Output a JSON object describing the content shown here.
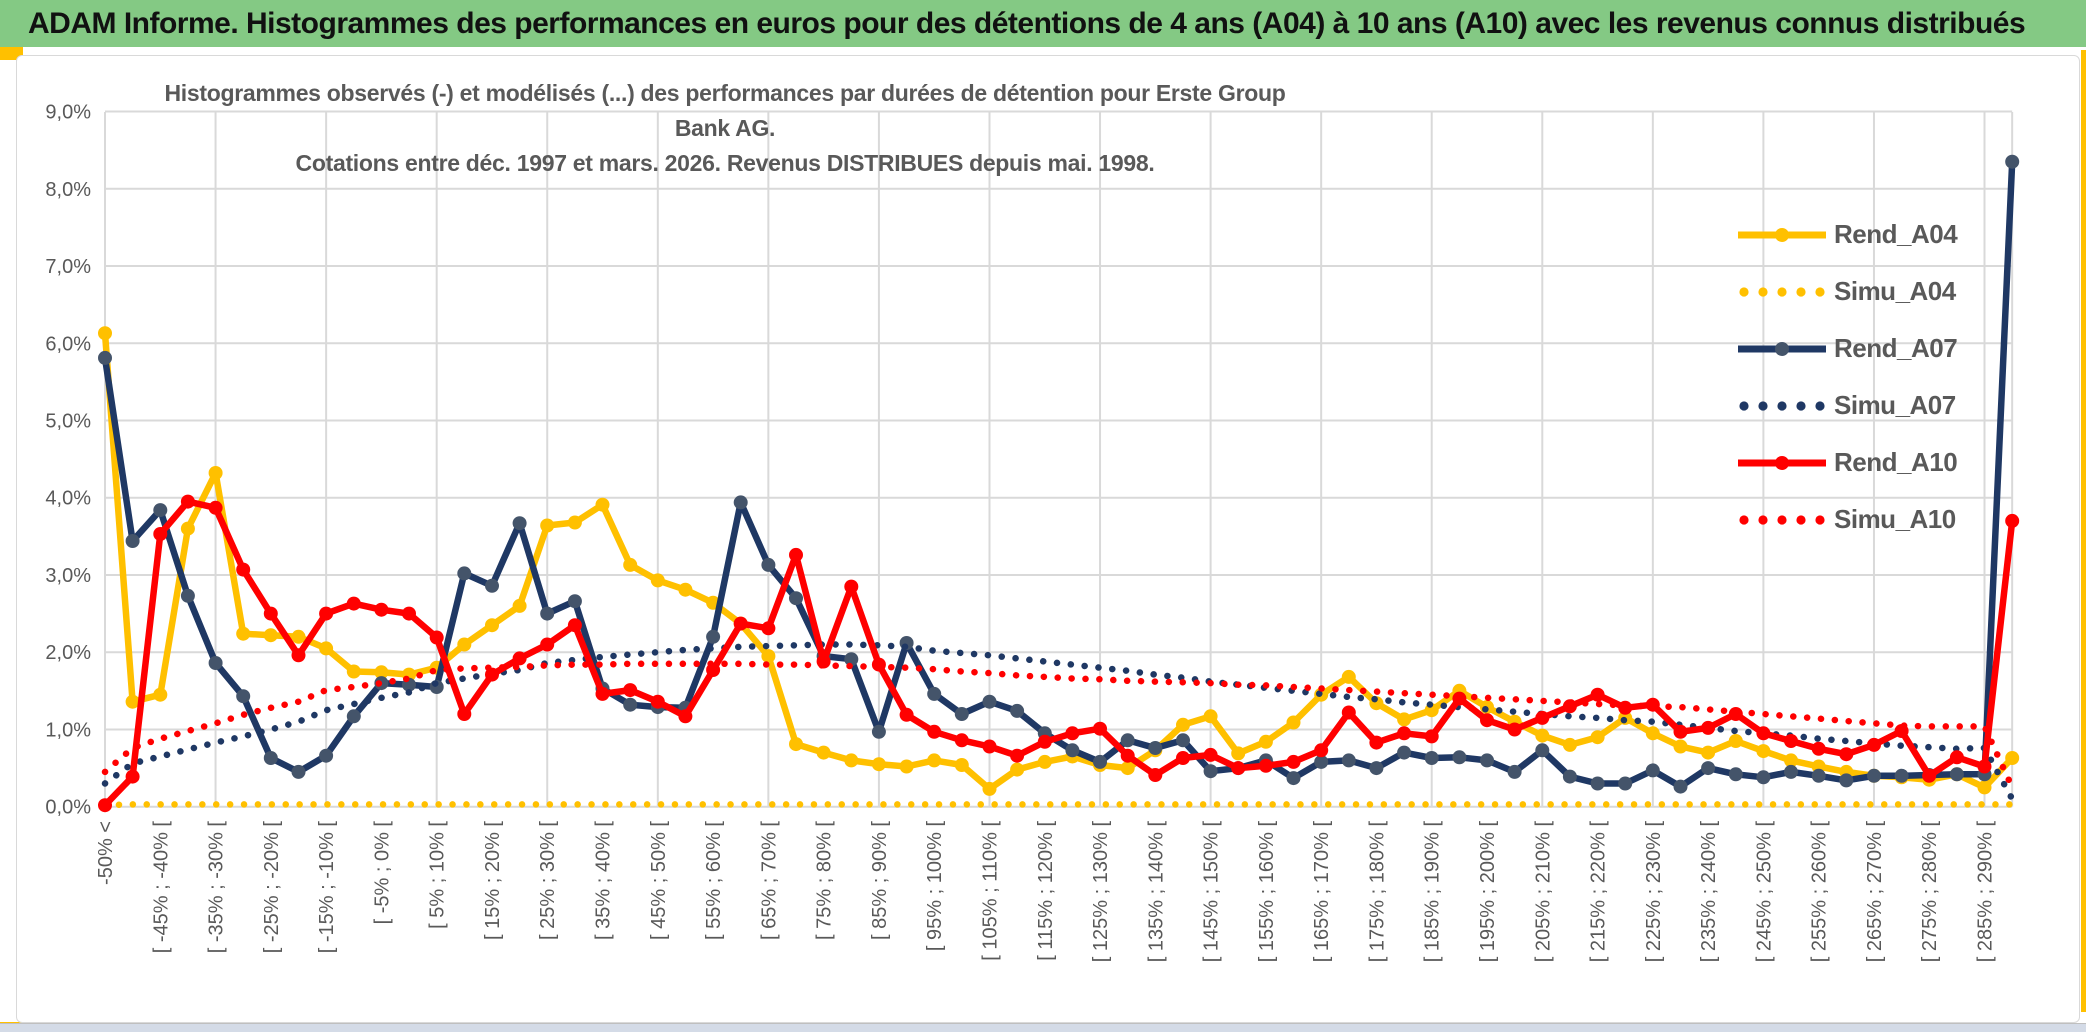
{
  "header": {
    "title": "ADAM Informe. Histogrammes des performances en euros pour des détentions de 4 ans (A04) à 10 ans (A10) avec les revenus connus distribués"
  },
  "chart": {
    "title_line1": "Histogrammes observés (-) et modélisés (...) des performances par durées de détention pour Erste Group Bank AG.",
    "title_line2": "Cotations entre déc. 1997 et mars. 2026. Revenus DISTRIBUES depuis mai. 1998."
  },
  "chart_data": {
    "type": "line",
    "title": "Histogrammes observés (-) et modélisés (...) des performances par durées de détention pour Erste Group Bank AG. Cotations entre déc. 1997 et mars. 2026. Revenus DISTRIBUES depuis mai. 1998.",
    "xlabel": "",
    "ylabel": "",
    "ylim": [
      0,
      9
    ],
    "y_unit": "%",
    "y_ticks": [
      "0,0%",
      "1,0%",
      "2,0%",
      "3,0%",
      "4,0%",
      "5,0%",
      "6,0%",
      "7,0%",
      "8,0%",
      "9,0%"
    ],
    "grid": true,
    "legend_position": "upper-right",
    "points_per_series": 70,
    "label_note": "5%-wide performance bins; 70 bins total, axis label on every other bin, vertical gridline every fourth bin",
    "categories": [
      "-50% <",
      "[ -45% ; -40% [",
      "[ -35% ; -30% [",
      "[ -25% ; -20% [",
      "[ -15% ; -10% [",
      "[ -5% ; 0% [",
      "[ 5% ; 10% [",
      "[ 15% ; 20% [",
      "[ 25% ; 30% [",
      "[ 35% ; 40% [",
      "[ 45% ; 50% [",
      "[ 55% ; 60% [",
      "[ 65% ; 70% [",
      "[ 75% ; 80% [",
      "[ 85% ; 90% [",
      "[ 95% ; 100% [",
      "[ 105% ; 110% [",
      "[ 115% ; 120% [",
      "[ 125% ; 130% [",
      "[ 135% ; 140% [",
      "[ 145% ; 150% [",
      "[ 155% ; 160% [",
      "[ 165% ; 170% [",
      "[ 175% ; 180% [",
      "[ 185% ; 190% [",
      "[ 195% ; 200% [",
      "[ 205% ; 210% [",
      "[ 215% ; 220% [",
      "[ 225% ; 230% [",
      "[ 235% ; 240% [",
      "[ 245% ; 250% [",
      "[ 255% ; 260% [",
      "[ 265% ; 270% [",
      "[ 275% ; 280% [",
      "[ 285% ; 290% ["
    ],
    "series": [
      {
        "name": "Rend_A04",
        "style": "solid",
        "color": "#FFC000",
        "marker_color": "#FFC000",
        "values": [
          6.13,
          1.36,
          1.45,
          3.6,
          4.32,
          2.24,
          2.22,
          2.2,
          2.05,
          1.75,
          1.74,
          1.71,
          1.8,
          2.1,
          2.35,
          2.6,
          3.64,
          3.68,
          3.91,
          3.13,
          2.93,
          2.81,
          2.64,
          2.37,
          1.95,
          0.81,
          0.7,
          0.6,
          0.55,
          0.52,
          0.6,
          0.54,
          0.23,
          0.48,
          0.58,
          0.65,
          0.54,
          0.5,
          0.73,
          1.06,
          1.17,
          0.69,
          0.84,
          1.09,
          1.45,
          1.68,
          1.34,
          1.13,
          1.25,
          1.5,
          1.29,
          1.1,
          0.92,
          0.8,
          0.9,
          1.15,
          0.95,
          0.78,
          0.7,
          0.85,
          0.72,
          0.6,
          0.52,
          0.45,
          0.4,
          0.38,
          0.35,
          0.42,
          0.25,
          0.63
        ]
      },
      {
        "name": "Simu_A04",
        "style": "dotted",
        "color": "#FFC000",
        "values": [
          0.02,
          0.03,
          0.03,
          0.03,
          0.03,
          0.03,
          0.03,
          0.03,
          0.03,
          0.03,
          0.03,
          0.03,
          0.03,
          0.03,
          0.03,
          0.03,
          0.03,
          0.03,
          0.03,
          0.03,
          0.03,
          0.03,
          0.03,
          0.03,
          0.03,
          0.03,
          0.03,
          0.03,
          0.03,
          0.03,
          0.03,
          0.03,
          0.03,
          0.03,
          0.03,
          0.03,
          0.03,
          0.03,
          0.03,
          0.03,
          0.03,
          0.03,
          0.03,
          0.03,
          0.03,
          0.03,
          0.03,
          0.03,
          0.03,
          0.03,
          0.03,
          0.03,
          0.03,
          0.03,
          0.03,
          0.03,
          0.03,
          0.03,
          0.03,
          0.03,
          0.03,
          0.03,
          0.03,
          0.03,
          0.03,
          0.03,
          0.03,
          0.03,
          0.03,
          0.03
        ]
      },
      {
        "name": "Rend_A07",
        "style": "solid",
        "color": "#1F3864",
        "marker_color": "#44546A",
        "values": [
          5.81,
          3.44,
          3.84,
          2.73,
          1.86,
          1.43,
          0.63,
          0.45,
          0.66,
          1.17,
          1.6,
          1.58,
          1.55,
          3.02,
          2.86,
          3.67,
          2.5,
          2.66,
          1.53,
          1.32,
          1.29,
          1.28,
          2.2,
          3.94,
          3.13,
          2.7,
          1.95,
          1.91,
          0.97,
          2.12,
          1.46,
          1.2,
          1.36,
          1.24,
          0.95,
          0.73,
          0.58,
          0.86,
          0.76,
          0.86,
          0.46,
          0.5,
          0.6,
          0.37,
          0.58,
          0.6,
          0.5,
          0.7,
          0.63,
          0.64,
          0.6,
          0.45,
          0.73,
          0.39,
          0.3,
          0.3,
          0.47,
          0.26,
          0.5,
          0.42,
          0.38,
          0.45,
          0.4,
          0.34,
          0.4,
          0.4,
          0.41,
          0.42,
          0.42,
          8.35
        ]
      },
      {
        "name": "Simu_A07",
        "style": "dotted",
        "color": "#1F3864",
        "values": [
          0.3,
          0.56,
          0.65,
          0.74,
          0.83,
          0.91,
          1.0,
          1.1,
          1.25,
          1.33,
          1.41,
          1.48,
          1.6,
          1.66,
          1.72,
          1.77,
          1.86,
          1.9,
          1.94,
          1.97,
          2.0,
          2.03,
          2.05,
          2.07,
          2.08,
          2.09,
          2.1,
          2.1,
          2.09,
          2.07,
          2.02,
          1.99,
          1.96,
          1.92,
          1.88,
          1.84,
          1.8,
          1.76,
          1.71,
          1.67,
          1.62,
          1.58,
          1.54,
          1.5,
          1.46,
          1.42,
          1.39,
          1.35,
          1.32,
          1.29,
          1.26,
          1.23,
          1.2,
          1.17,
          1.15,
          1.12,
          1.1,
          1.06,
          1.02,
          0.98,
          0.95,
          0.92,
          0.88,
          0.85,
          0.82,
          0.79,
          0.77,
          0.75,
          0.76,
          0.1
        ]
      },
      {
        "name": "Rend_A10",
        "style": "solid",
        "color": "#FF0000",
        "marker_color": "#FF0000",
        "values": [
          0.02,
          0.39,
          3.53,
          3.95,
          3.87,
          3.07,
          2.5,
          1.96,
          2.5,
          2.63,
          2.55,
          2.5,
          2.19,
          1.2,
          1.71,
          1.92,
          2.1,
          2.35,
          1.46,
          1.51,
          1.36,
          1.17,
          1.77,
          2.37,
          2.31,
          3.26,
          1.88,
          2.85,
          1.84,
          1.19,
          0.97,
          0.86,
          0.78,
          0.66,
          0.84,
          0.95,
          1.01,
          0.66,
          0.41,
          0.63,
          0.67,
          0.5,
          0.53,
          0.58,
          0.73,
          1.22,
          0.83,
          0.95,
          0.91,
          1.4,
          1.12,
          1.0,
          1.15,
          1.3,
          1.45,
          1.28,
          1.32,
          0.97,
          1.02,
          1.2,
          0.95,
          0.85,
          0.75,
          0.68,
          0.8,
          0.98,
          0.4,
          0.64,
          0.52,
          3.7
        ]
      },
      {
        "name": "Simu_A10",
        "style": "dotted",
        "color": "#FF0000",
        "values": [
          0.45,
          0.76,
          0.88,
          0.98,
          1.08,
          1.19,
          1.28,
          1.36,
          1.51,
          1.55,
          1.6,
          1.66,
          1.77,
          1.79,
          1.8,
          1.81,
          1.83,
          1.84,
          1.84,
          1.85,
          1.85,
          1.85,
          1.85,
          1.85,
          1.84,
          1.84,
          1.83,
          1.82,
          1.81,
          1.8,
          1.78,
          1.75,
          1.73,
          1.7,
          1.68,
          1.66,
          1.65,
          1.63,
          1.62,
          1.61,
          1.6,
          1.58,
          1.57,
          1.55,
          1.53,
          1.51,
          1.49,
          1.47,
          1.45,
          1.43,
          1.41,
          1.39,
          1.37,
          1.35,
          1.33,
          1.31,
          1.3,
          1.29,
          1.26,
          1.23,
          1.2,
          1.17,
          1.14,
          1.11,
          1.08,
          1.05,
          1.04,
          1.04,
          1.04,
          0.25
        ]
      }
    ]
  },
  "colors": {
    "header_bg": "#84C984",
    "grid": "#D9D9D9",
    "axis_text": "#595959",
    "accent_gold": "#FFC000",
    "bottom_strip": "#D4DBE7"
  }
}
